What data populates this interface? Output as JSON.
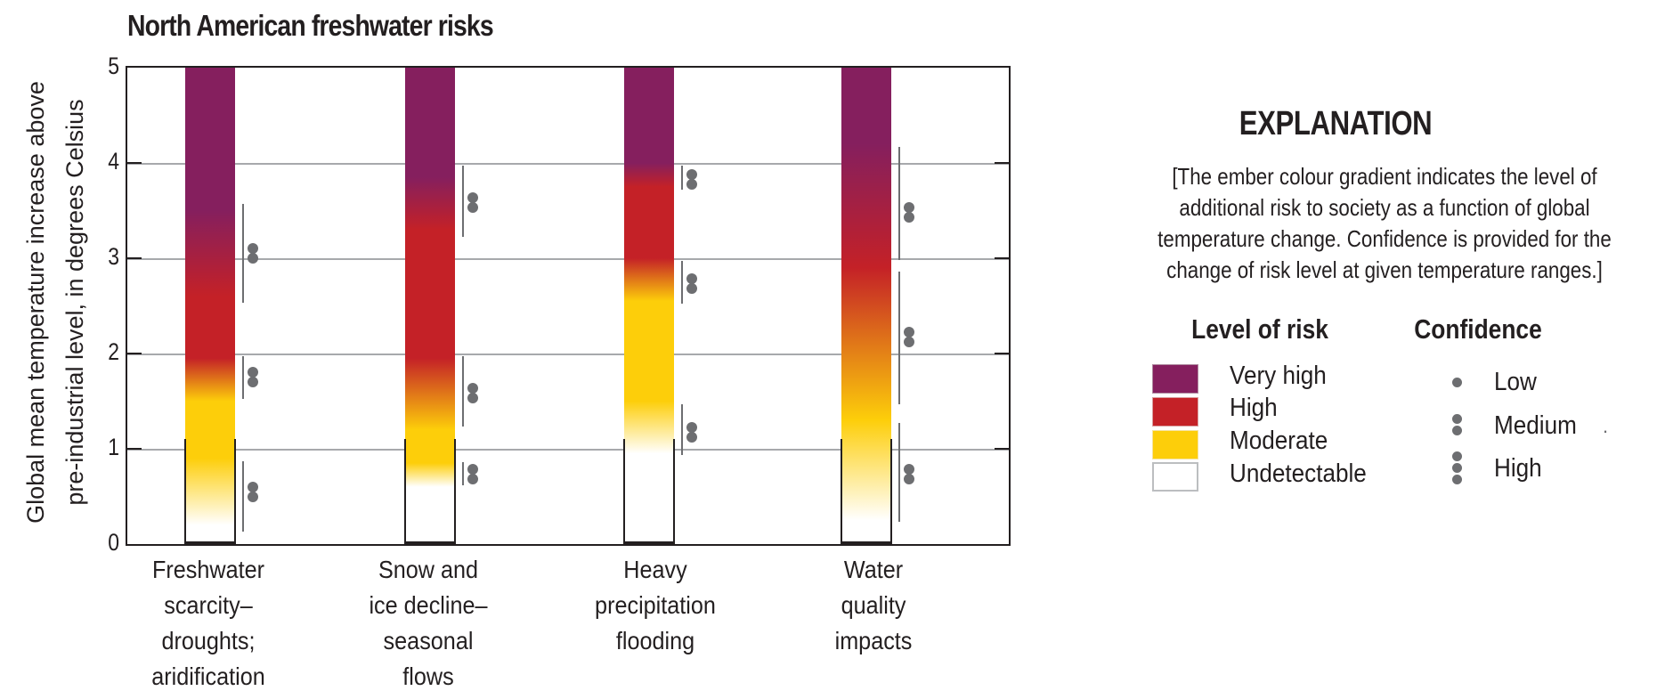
{
  "chart_data": {
    "type": "heatmap",
    "subtype": "burning-ember",
    "title": "North American freshwater risks",
    "xlabel": "",
    "ylabel": "Global mean temperature increase above pre-industrial level, in degrees Celsius",
    "ylabel_lines": [
      "Global mean temperature increase above",
      "pre-industrial level, in degrees Celsius"
    ],
    "ylim": [
      0,
      5
    ],
    "yticks": [
      0,
      1,
      2,
      3,
      4,
      5
    ],
    "grid": true,
    "categories": [
      "Freshwater scarcity–droughts; aridification",
      "Snow and ice decline–seasonal flows",
      "Heavy precipitation flooding",
      "Water quality impacts"
    ],
    "category_lines": [
      [
        "Freshwater",
        "scarcity–",
        "droughts;",
        "aridification"
      ],
      [
        "Snow and",
        "ice decline–",
        "seasonal",
        "flows"
      ],
      [
        "Heavy",
        "precipitation",
        "flooding"
      ],
      [
        "Water",
        "quality",
        "impacts"
      ]
    ],
    "risk_colors": {
      "very_high": "#851F5E",
      "high": "#C42127",
      "moderate": "#FDCE0A",
      "undetectable": "#FFFFFF"
    },
    "embers": [
      {
        "name": "Freshwater scarcity–droughts; aridification",
        "gradient_stops": [
          {
            "t": 0.0,
            "level": "undetectable"
          },
          {
            "t": 0.2,
            "level": "undetectable"
          },
          {
            "t": 0.9,
            "level": "moderate"
          },
          {
            "t": 1.5,
            "level": "moderate"
          },
          {
            "t": 1.95,
            "level": "high"
          },
          {
            "t": 2.6,
            "level": "high"
          },
          {
            "t": 3.5,
            "level": "very_high"
          },
          {
            "t": 5.0,
            "level": "very_high"
          }
        ],
        "observed_bracket_top": 1.1,
        "confidence": [
          {
            "from": 0.13,
            "to": 0.87,
            "level": "Medium",
            "dots": 2,
            "dot_center": 0.55
          },
          {
            "from": 1.52,
            "to": 1.97,
            "level": "Medium",
            "dots": 2,
            "dot_center": 1.75
          },
          {
            "from": 2.53,
            "to": 3.57,
            "level": "Medium",
            "dots": 2,
            "dot_center": 3.05
          }
        ]
      },
      {
        "name": "Snow and ice decline–seasonal flows",
        "gradient_stops": [
          {
            "t": 0.0,
            "level": "undetectable"
          },
          {
            "t": 0.6,
            "level": "undetectable"
          },
          {
            "t": 0.85,
            "level": "moderate"
          },
          {
            "t": 1.2,
            "level": "moderate"
          },
          {
            "t": 1.95,
            "level": "high"
          },
          {
            "t": 3.3,
            "level": "high"
          },
          {
            "t": 3.85,
            "level": "very_high"
          },
          {
            "t": 5.0,
            "level": "very_high"
          }
        ],
        "observed_bracket_top": 1.1,
        "confidence": [
          {
            "from": 0.62,
            "to": 0.86,
            "level": "Medium",
            "dots": 2,
            "dot_center": 0.73
          },
          {
            "from": 1.23,
            "to": 1.97,
            "level": "Medium",
            "dots": 2,
            "dot_center": 1.58
          },
          {
            "from": 3.22,
            "to": 3.97,
            "level": "Medium",
            "dots": 2,
            "dot_center": 3.58
          }
        ]
      },
      {
        "name": "Heavy precipitation flooding",
        "gradient_stops": [
          {
            "t": 0.0,
            "level": "undetectable"
          },
          {
            "t": 0.95,
            "level": "undetectable"
          },
          {
            "t": 1.5,
            "level": "moderate"
          },
          {
            "t": 2.55,
            "level": "moderate"
          },
          {
            "t": 3.0,
            "level": "high"
          },
          {
            "t": 3.75,
            "level": "high"
          },
          {
            "t": 4.0,
            "level": "very_high"
          },
          {
            "t": 5.0,
            "level": "very_high"
          }
        ],
        "observed_bracket_top": 1.1,
        "confidence": [
          {
            "from": 0.93,
            "to": 1.47,
            "level": "Medium",
            "dots": 2,
            "dot_center": 1.17
          },
          {
            "from": 2.52,
            "to": 2.97,
            "level": "Medium",
            "dots": 2,
            "dot_center": 2.73
          },
          {
            "from": 3.72,
            "to": 3.97,
            "level": "Medium",
            "dots": 2,
            "dot_center": 3.83
          }
        ]
      },
      {
        "name": "Water quality impacts",
        "gradient_stops": [
          {
            "t": 0.0,
            "level": "undetectable"
          },
          {
            "t": 0.25,
            "level": "undetectable"
          },
          {
            "t": 1.3,
            "level": "moderate"
          },
          {
            "t": 2.9,
            "level": "high"
          },
          {
            "t": 4.2,
            "level": "very_high"
          },
          {
            "t": 5.0,
            "level": "very_high"
          }
        ],
        "observed_bracket_top": 1.1,
        "confidence": [
          {
            "from": 0.23,
            "to": 1.27,
            "level": "Medium",
            "dots": 2,
            "dot_center": 0.73
          },
          {
            "from": 1.47,
            "to": 2.86,
            "level": "Medium",
            "dots": 2,
            "dot_center": 2.17
          },
          {
            "from": 2.98,
            "to": 4.17,
            "level": "Medium",
            "dots": 2,
            "dot_center": 3.48
          }
        ]
      }
    ],
    "legend_position": "right"
  },
  "explanation": {
    "title": "EXPLANATION",
    "text_lines": [
      "[The ember colour gradient indicates the level of",
      "additional risk to society as a function of global",
      "temperature change. Confidence is provided for the",
      "change of risk level at given temperature ranges.]"
    ],
    "risk_heading": "Level of risk",
    "risk_levels": [
      {
        "label": "Very high",
        "color": "#851F5E"
      },
      {
        "label": "High",
        "color": "#C42127"
      },
      {
        "label": "Moderate",
        "color": "#FDCE0A"
      },
      {
        "label": "Undetectable",
        "color": "#FFFFFF"
      }
    ],
    "confidence_heading": "Confidence",
    "confidence_levels": [
      {
        "label": "Low",
        "dots": 1
      },
      {
        "label": "Medium",
        "dots": 2
      },
      {
        "label": "High",
        "dots": 3
      }
    ],
    "stray_mark": "."
  },
  "colors": {
    "axis": "#231F20",
    "grid": "#A7A9AC",
    "confidence": "#6D6E71"
  }
}
